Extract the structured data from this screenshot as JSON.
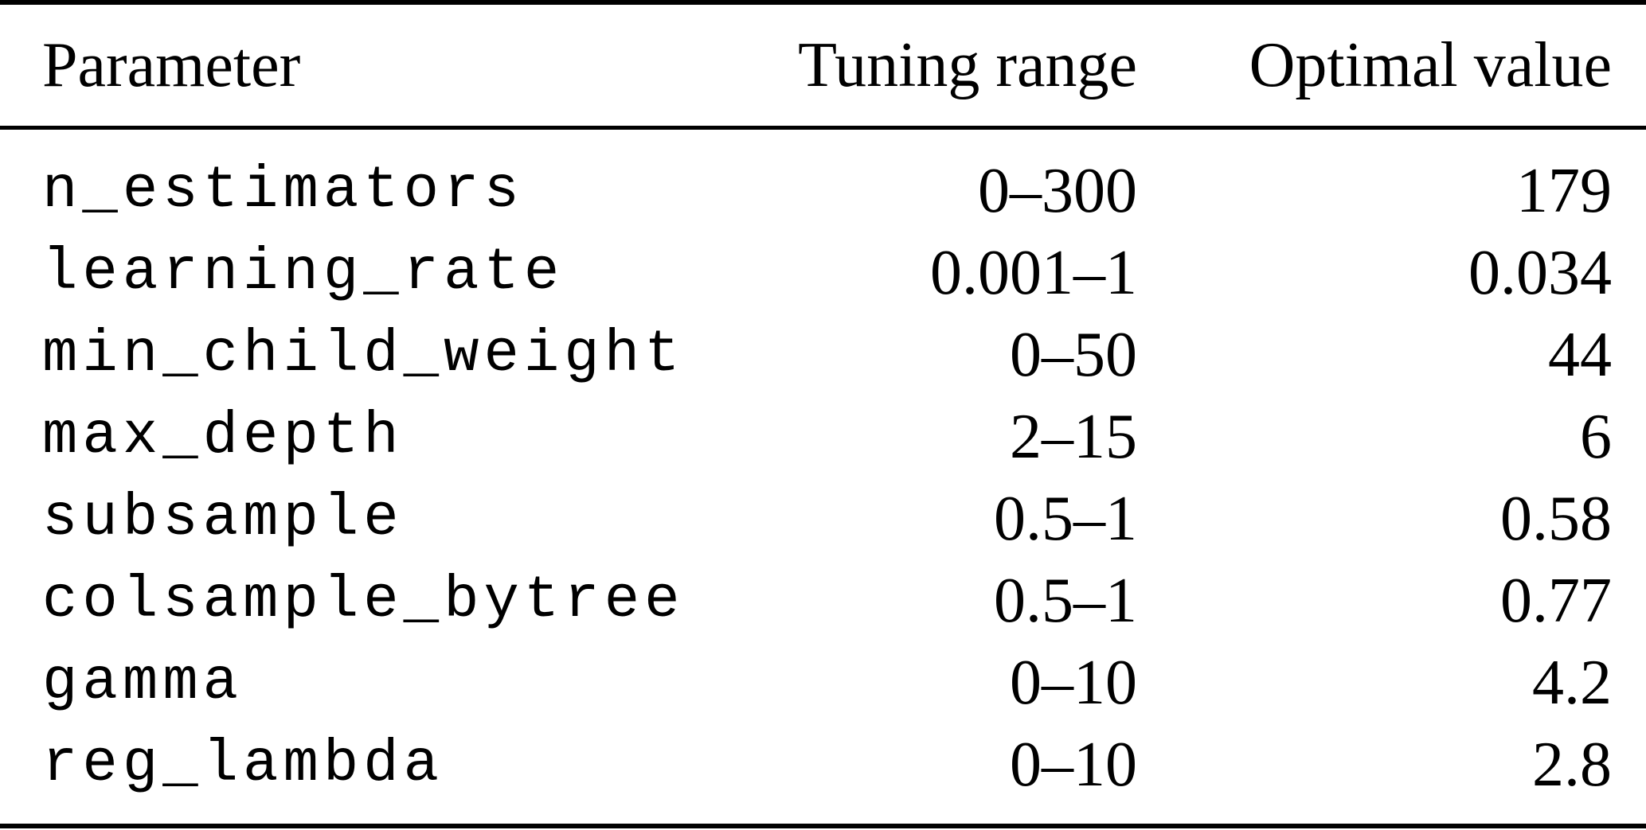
{
  "colors": {
    "background": "#ffffff",
    "text": "#000000",
    "rule": "#000000"
  },
  "table": {
    "columns": [
      {
        "label": "Parameter"
      },
      {
        "label": "Tuning range"
      },
      {
        "label": "Optimal value"
      }
    ],
    "rows": [
      {
        "parameter": "n_estimators",
        "tuning_range": "0–300",
        "optimal_value": "179"
      },
      {
        "parameter": "learning_rate",
        "tuning_range": "0.001–1",
        "optimal_value": "0.034"
      },
      {
        "parameter": "min_child_weight",
        "tuning_range": "0–50",
        "optimal_value": "44"
      },
      {
        "parameter": "max_depth",
        "tuning_range": "2–15",
        "optimal_value": "6"
      },
      {
        "parameter": "subsample",
        "tuning_range": "0.5–1",
        "optimal_value": "0.58"
      },
      {
        "parameter": "colsample_bytree",
        "tuning_range": "0.5–1",
        "optimal_value": "0.77"
      },
      {
        "parameter": "gamma",
        "tuning_range": "0–10",
        "optimal_value": "4.2"
      },
      {
        "parameter": "reg_lambda",
        "tuning_range": "0–10",
        "optimal_value": "2.8"
      }
    ]
  }
}
